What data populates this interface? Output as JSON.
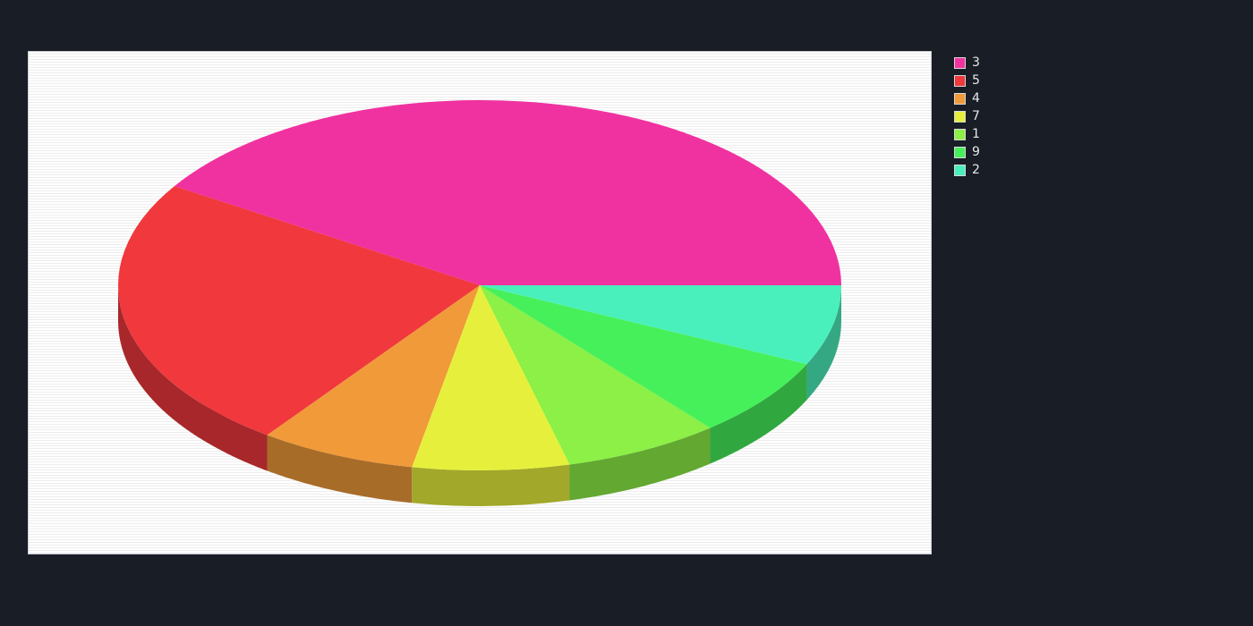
{
  "chart_data": {
    "type": "pie",
    "style": "3d",
    "title": "",
    "slices": [
      {
        "label": "3",
        "value": 41,
        "color": "#f032a0",
        "side_color": "#a8236f"
      },
      {
        "label": "5",
        "value": 24,
        "color": "#f0383d",
        "side_color": "#a8272a"
      },
      {
        "label": "4",
        "value": 7,
        "color": "#f09a3a",
        "side_color": "#a86c29"
      },
      {
        "label": "7",
        "value": 7,
        "color": "#e6f03c",
        "side_color": "#a1a82a"
      },
      {
        "label": "1",
        "value": 7,
        "color": "#8cf046",
        "side_color": "#62a831"
      },
      {
        "label": "9",
        "value": 7,
        "color": "#46f05a",
        "side_color": "#31a83f"
      },
      {
        "label": "2",
        "value": 7,
        "color": "#4af0bb",
        "side_color": "#34a883"
      }
    ],
    "legend_position": "right",
    "background": "#191d26"
  }
}
